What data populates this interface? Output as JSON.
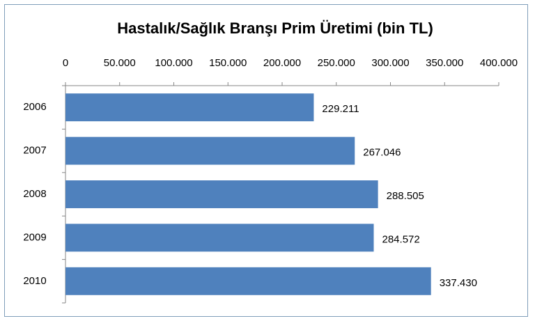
{
  "chart_data": {
    "type": "bar",
    "orientation": "horizontal",
    "title": "Hastalık/Sağlık Branşı  Prim Üretimi (bin TL)",
    "categories": [
      "2006",
      "2007",
      "2008",
      "2009",
      "2010"
    ],
    "values": [
      229211,
      267046,
      288505,
      284572,
      337430
    ],
    "value_labels": [
      "229.211",
      "267.046",
      "288.505",
      "284.572",
      "337.430"
    ],
    "color": "#4f81bd",
    "xlim": [
      0,
      400000
    ],
    "xticks": [
      0,
      {
        "value": 50000,
        "label": "50.000"
      },
      {
        "value": 100000,
        "label": "100.000"
      },
      {
        "value": 150000,
        "label": "150.000"
      },
      {
        "value": 200000,
        "label": "200.000"
      },
      {
        "value": 250000,
        "label": "250.000"
      },
      {
        "value": 300000,
        "label": "300.000"
      },
      {
        "value": 350000,
        "label": "350.000"
      },
      {
        "value": 400000,
        "label": "400.000"
      }
    ],
    "grid": false
  }
}
